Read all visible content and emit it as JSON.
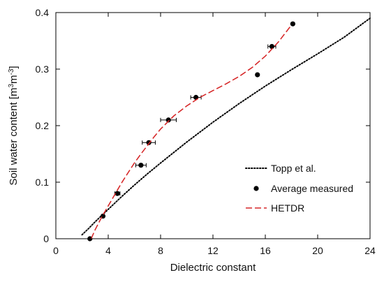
{
  "chart_data": {
    "type": "scatter",
    "xlabel": "Dielectric constant",
    "ylabel": {
      "prefix": "Soil water content [m",
      "sup1": "3",
      "mid": "m",
      "sup2": "-3",
      "suffix": "]"
    },
    "xlim": [
      0,
      24
    ],
    "ylim": [
      0,
      0.4
    ],
    "x_ticks": [
      0,
      4,
      8,
      12,
      16,
      20,
      24
    ],
    "y_ticks": [
      0,
      0.1,
      0.2,
      0.3,
      0.4
    ],
    "x_tick_labels": [
      "0",
      "4",
      "8",
      "12",
      "16",
      "20",
      "24"
    ],
    "y_tick_labels": [
      "0",
      "0.1",
      "0.2",
      "0.3",
      "0.4"
    ],
    "grid": false,
    "legend_position": "bottom-right",
    "series": [
      {
        "name": "Topp et al.",
        "kind": "line",
        "style": "dotted",
        "color": "#000000",
        "x": [
          2.0,
          2.5,
          3.0,
          4.0,
          5.0,
          6.0,
          7.0,
          8.0,
          10.0,
          12.0,
          14.0,
          16.0,
          18.0,
          20.0,
          22.0,
          24.0
        ],
        "y": [
          0.007,
          0.018,
          0.03,
          0.052,
          0.074,
          0.095,
          0.115,
          0.134,
          0.171,
          0.206,
          0.239,
          0.27,
          0.299,
          0.327,
          0.356,
          0.39
        ]
      },
      {
        "name": "Average measured",
        "kind": "points",
        "color": "#000000",
        "x": [
          2.6,
          3.6,
          4.7,
          6.5,
          7.1,
          8.6,
          10.7,
          15.4,
          16.5,
          18.1
        ],
        "y": [
          0.0,
          0.04,
          0.08,
          0.13,
          0.17,
          0.21,
          0.25,
          0.29,
          0.34,
          0.38
        ],
        "x_error": [
          0,
          0,
          0.2,
          0.4,
          0.5,
          0.6,
          0.4,
          0,
          0.3,
          0
        ]
      },
      {
        "name": "HETDR",
        "kind": "line",
        "style": "dashed",
        "color": "#d62728",
        "x": [
          2.7,
          3.0,
          3.5,
          4.0,
          4.5,
          5.0,
          5.5,
          6.0,
          6.5,
          7.0,
          7.5,
          8.0,
          9.0,
          10.0,
          11.0,
          12.0,
          13.0,
          14.0,
          15.0,
          16.0,
          17.0,
          18.0
        ],
        "y": [
          0.0,
          0.016,
          0.038,
          0.058,
          0.078,
          0.098,
          0.116,
          0.134,
          0.15,
          0.165,
          0.18,
          0.194,
          0.217,
          0.235,
          0.25,
          0.262,
          0.274,
          0.287,
          0.303,
          0.323,
          0.348,
          0.378
        ]
      }
    ]
  }
}
